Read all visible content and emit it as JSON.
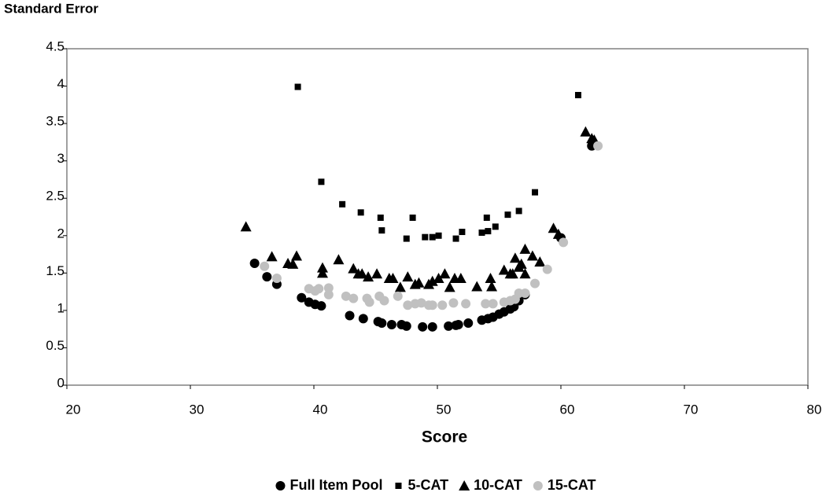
{
  "chart_data": {
    "type": "scatter",
    "title": "Standard Error",
    "x_label": "Score",
    "xlim": [
      20,
      80
    ],
    "xticks": [
      20,
      30,
      40,
      50,
      60,
      70,
      80
    ],
    "ylim": [
      0,
      4.5
    ],
    "yticks": [
      0,
      0.5,
      1,
      1.5,
      2,
      2.5,
      3,
      3.5,
      4,
      4.5
    ],
    "legend": "bottom",
    "series": [
      {
        "name": "Full Item Pool",
        "color": "#000000",
        "marker": "circle",
        "x": [
          35.2,
          36.2,
          37.0,
          39.0,
          39.6,
          40.1,
          40.6,
          42.9,
          44.0,
          45.2,
          45.5,
          46.3,
          47.1,
          47.5,
          48.8,
          49.6,
          50.9,
          51.5,
          51.7,
          52.5,
          53.6,
          54.1,
          54.5,
          55.0,
          55.4,
          55.9,
          56.2,
          56.6,
          57.1,
          60.0,
          62.5
        ],
        "values": [
          1.63,
          1.45,
          1.35,
          1.17,
          1.11,
          1.08,
          1.06,
          0.93,
          0.89,
          0.85,
          0.83,
          0.81,
          0.81,
          0.79,
          0.78,
          0.78,
          0.79,
          0.8,
          0.81,
          0.83,
          0.87,
          0.89,
          0.91,
          0.95,
          0.98,
          1.02,
          1.05,
          1.13,
          1.21,
          1.97,
          3.2
        ]
      },
      {
        "name": "5-CAT",
        "color": "#000000",
        "marker": "square",
        "x": [
          38.7,
          40.6,
          42.3,
          43.8,
          45.4,
          45.5,
          47.5,
          48.0,
          49.0,
          49.6,
          50.1,
          51.5,
          52.0,
          53.6,
          54.0,
          54.1,
          54.7,
          55.7,
          56.6,
          57.9,
          61.4
        ],
        "values": [
          3.99,
          2.72,
          2.42,
          2.31,
          2.24,
          2.07,
          1.96,
          2.24,
          1.98,
          1.98,
          2.0,
          1.96,
          2.05,
          2.04,
          2.24,
          2.06,
          2.12,
          2.28,
          2.33,
          2.58,
          3.88
        ]
      },
      {
        "name": "10-CAT",
        "color": "#000000",
        "marker": "triangle",
        "x": [
          34.5,
          36.6,
          37.9,
          38.3,
          38.6,
          40.7,
          40.7,
          42.0,
          43.2,
          43.6,
          43.9,
          44.4,
          45.1,
          46.1,
          46.4,
          47.0,
          47.6,
          48.2,
          48.5,
          49.3,
          49.6,
          50.1,
          50.6,
          51.0,
          51.4,
          51.9,
          53.2,
          54.3,
          54.4,
          55.4,
          55.9,
          56.1,
          56.3,
          56.6,
          56.8,
          57.1,
          57.1,
          57.7,
          58.3,
          59.4,
          59.8,
          62.0,
          62.5,
          62.7
        ],
        "values": [
          2.12,
          1.72,
          1.63,
          1.62,
          1.73,
          1.57,
          1.5,
          1.68,
          1.56,
          1.49,
          1.49,
          1.45,
          1.49,
          1.43,
          1.43,
          1.31,
          1.45,
          1.35,
          1.37,
          1.35,
          1.39,
          1.43,
          1.49,
          1.31,
          1.43,
          1.43,
          1.32,
          1.43,
          1.32,
          1.54,
          1.49,
          1.49,
          1.7,
          1.58,
          1.62,
          1.82,
          1.49,
          1.73,
          1.65,
          2.1,
          2.02,
          3.39,
          3.3,
          3.28
        ]
      },
      {
        "name": "15-CAT",
        "color": "#c0c0c0",
        "marker": "circle",
        "x": [
          36.0,
          37.0,
          39.6,
          40.1,
          40.4,
          41.2,
          41.2,
          42.6,
          43.2,
          44.3,
          44.5,
          45.3,
          45.7,
          46.8,
          47.6,
          48.2,
          48.7,
          49.3,
          49.6,
          50.4,
          51.3,
          52.3,
          53.9,
          54.5,
          55.4,
          55.9,
          56.3,
          56.6,
          57.1,
          57.9,
          58.9,
          60.2,
          63.0
        ],
        "values": [
          1.59,
          1.43,
          1.29,
          1.26,
          1.29,
          1.21,
          1.3,
          1.19,
          1.16,
          1.16,
          1.11,
          1.19,
          1.13,
          1.19,
          1.07,
          1.09,
          1.1,
          1.07,
          1.07,
          1.07,
          1.1,
          1.09,
          1.09,
          1.09,
          1.11,
          1.13,
          1.15,
          1.23,
          1.23,
          1.36,
          1.55,
          1.91,
          3.2
        ]
      }
    ]
  }
}
